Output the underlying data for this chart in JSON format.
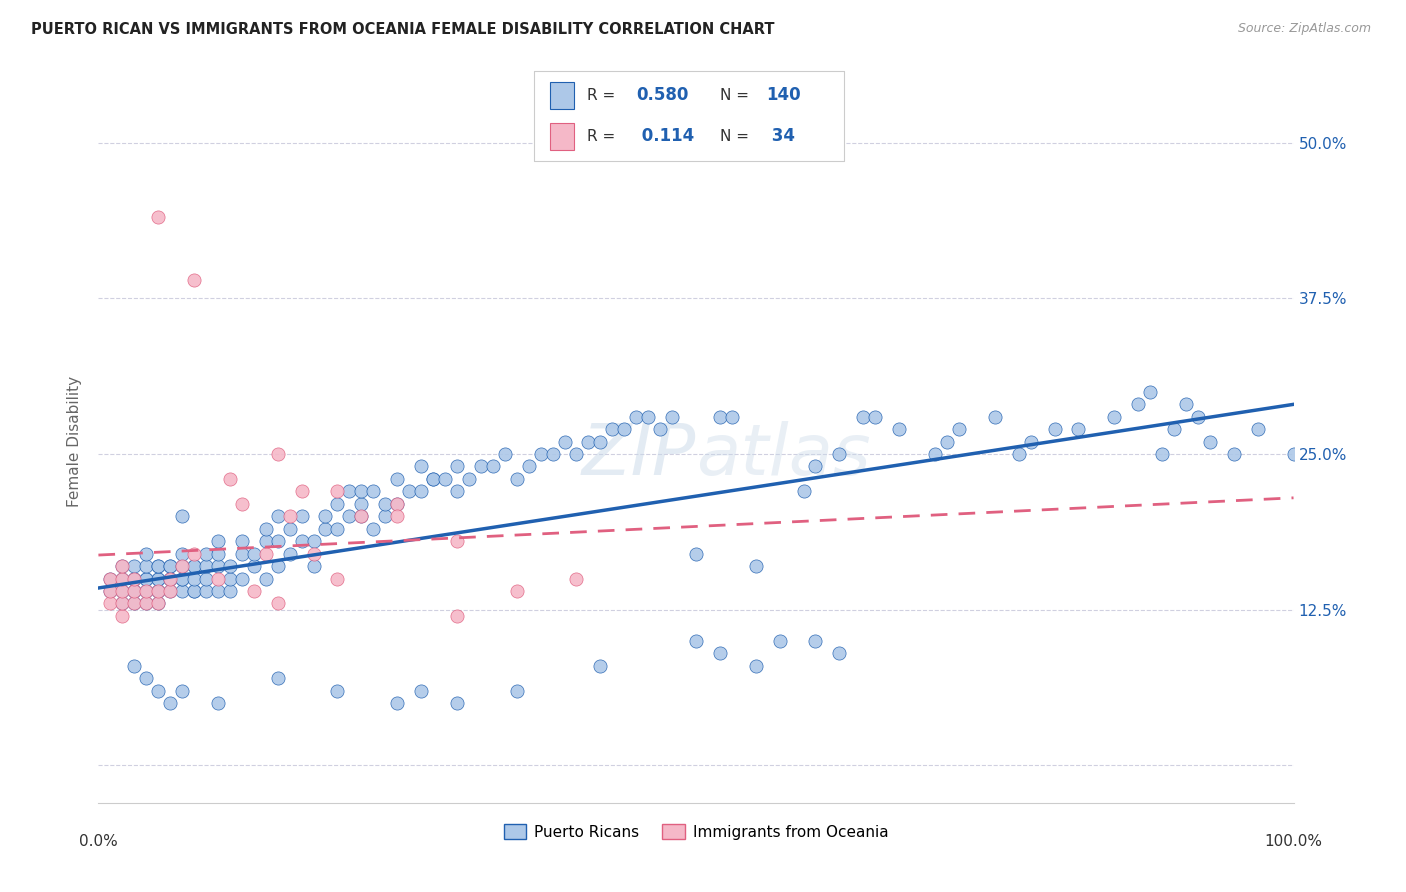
{
  "title": "PUERTO RICAN VS IMMIGRANTS FROM OCEANIA FEMALE DISABILITY CORRELATION CHART",
  "source": "Source: ZipAtlas.com",
  "ylabel": "Female Disability",
  "xlabel": "",
  "xlim": [
    0,
    100
  ],
  "ylim": [
    -3,
    55
  ],
  "yticks": [
    0,
    12.5,
    25.0,
    37.5,
    50.0
  ],
  "xticks": [
    0,
    25,
    50,
    75,
    100
  ],
  "xtick_labels": [
    "0.0%",
    "",
    "",
    "",
    "100.0%"
  ],
  "ytick_labels": [
    "",
    "12.5%",
    "25.0%",
    "37.5%",
    "50.0%"
  ],
  "blue_R": 0.58,
  "blue_N": 140,
  "pink_R": 0.114,
  "pink_N": 34,
  "blue_color": "#adc8e8",
  "pink_color": "#f5b8c8",
  "blue_line_color": "#2060b0",
  "pink_line_color": "#e06080",
  "background_color": "#ffffff",
  "grid_color": "#d0d0e0",
  "blue_x": [
    1,
    1,
    2,
    2,
    2,
    2,
    3,
    3,
    3,
    3,
    3,
    3,
    4,
    4,
    4,
    4,
    4,
    4,
    5,
    5,
    5,
    5,
    5,
    5,
    5,
    6,
    6,
    6,
    6,
    6,
    7,
    7,
    7,
    7,
    7,
    7,
    8,
    8,
    8,
    8,
    8,
    9,
    9,
    9,
    9,
    10,
    10,
    10,
    10,
    11,
    11,
    11,
    12,
    12,
    12,
    13,
    13,
    14,
    14,
    14,
    15,
    15,
    15,
    16,
    16,
    17,
    17,
    18,
    18,
    19,
    19,
    20,
    20,
    21,
    21,
    22,
    22,
    22,
    23,
    23,
    24,
    24,
    25,
    25,
    26,
    27,
    27,
    28,
    28,
    29,
    30,
    30,
    31,
    32,
    33,
    34,
    35,
    36,
    37,
    38,
    39,
    40,
    41,
    42,
    43,
    44,
    45,
    46,
    47,
    48,
    50,
    52,
    53,
    55,
    57,
    59,
    60,
    62,
    64,
    65,
    67,
    70,
    71,
    72,
    75,
    77,
    78,
    80,
    82,
    85,
    87,
    88,
    89,
    90,
    91,
    92,
    93,
    95,
    97,
    100
  ],
  "blue_y": [
    14,
    15,
    13,
    14,
    15,
    16,
    13,
    14,
    14,
    15,
    15,
    16,
    13,
    14,
    15,
    15,
    16,
    17,
    13,
    14,
    14,
    15,
    15,
    16,
    16,
    14,
    15,
    15,
    16,
    16,
    14,
    15,
    15,
    16,
    17,
    20,
    14,
    14,
    15,
    16,
    16,
    14,
    15,
    16,
    17,
    14,
    16,
    17,
    18,
    14,
    15,
    16,
    15,
    17,
    18,
    16,
    17,
    15,
    18,
    19,
    16,
    18,
    20,
    17,
    19,
    18,
    20,
    16,
    18,
    19,
    20,
    19,
    21,
    20,
    22,
    20,
    21,
    22,
    22,
    19,
    20,
    21,
    21,
    23,
    22,
    22,
    24,
    23,
    23,
    23,
    22,
    24,
    23,
    24,
    24,
    25,
    23,
    24,
    25,
    25,
    26,
    25,
    26,
    26,
    27,
    27,
    28,
    28,
    27,
    28,
    17,
    28,
    28,
    16,
    10,
    22,
    24,
    25,
    28,
    28,
    27,
    25,
    26,
    27,
    28,
    25,
    26,
    27,
    27,
    28,
    29,
    30,
    25,
    27,
    29,
    28,
    26,
    25,
    27,
    25
  ],
  "blue_x_low": [
    3,
    4,
    5,
    6,
    7,
    10,
    15,
    20,
    25,
    27,
    30,
    35,
    42,
    50,
    52,
    55,
    60,
    62
  ],
  "blue_y_low": [
    8,
    7,
    6,
    5,
    6,
    5,
    7,
    6,
    5,
    6,
    5,
    6,
    8,
    10,
    9,
    8,
    10,
    9
  ],
  "pink_x": [
    1,
    1,
    1,
    2,
    2,
    2,
    2,
    2,
    3,
    3,
    3,
    4,
    4,
    5,
    5,
    6,
    6,
    7,
    8,
    10,
    11,
    12,
    13,
    14,
    15,
    16,
    17,
    18,
    20,
    22,
    25,
    30,
    35,
    40
  ],
  "pink_y": [
    13,
    14,
    15,
    12,
    13,
    14,
    15,
    16,
    13,
    14,
    15,
    13,
    14,
    13,
    14,
    14,
    15,
    16,
    17,
    15,
    23,
    21,
    14,
    17,
    13,
    20,
    22,
    17,
    15,
    20,
    21,
    18,
    14,
    15
  ],
  "pink_x_outliers": [
    5,
    8,
    15,
    20,
    25,
    30
  ],
  "pink_y_outliers": [
    44,
    39,
    25,
    22,
    20,
    12
  ]
}
